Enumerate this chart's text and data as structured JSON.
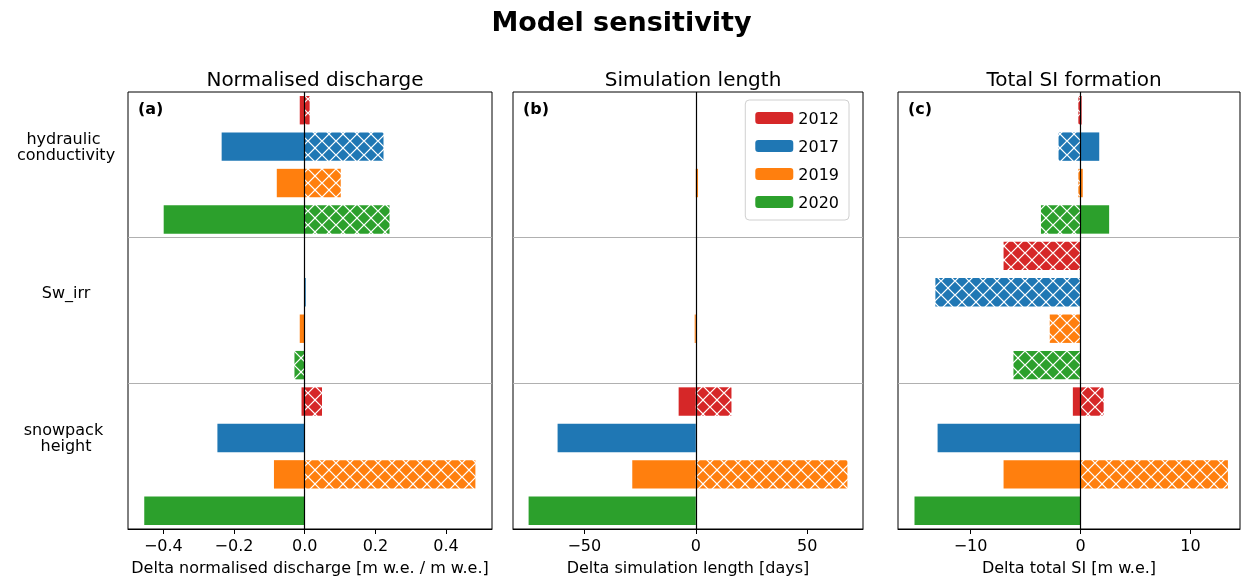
{
  "chart_data": [
    {
      "type": "bar",
      "orientation": "horizontal",
      "stacked": true,
      "title": "Normalised discharge",
      "xlabel": "Delta normalised discharge [m w.e. / m w.e.]",
      "annotations": [
        "Model sensitivity",
        "(a)"
      ],
      "categories": [
        null,
        "hydraulic conductivity",
        null,
        null,
        null,
        "Sw_irr",
        null,
        null,
        null,
        "snowpack height",
        null,
        null
      ],
      "xlim": [
        -0.5,
        0.53
      ],
      "xticks": [
        {
          "value": -0.4,
          "label": "−0.4"
        },
        {
          "value": -0.2,
          "label": "−0.2"
        },
        {
          "value": 0,
          "label": "0.0"
        },
        {
          "value": 0.2,
          "label": "0.2"
        },
        {
          "value": 0.4,
          "label": "0.4"
        }
      ],
      "grid": "y",
      "ref_lines": [
        {
          "axis": "x",
          "value": 0,
          "color": "#000000"
        }
      ],
      "series": [
        {
          "color": "#d62728",
          "values": [
            -0.014,
            null,
            null,
            null,
            null,
            null,
            null,
            null,
            -0.009,
            null,
            null,
            null
          ]
        },
        {
          "color": "#d62728",
          "values": [
            0.014,
            null,
            null,
            null,
            null,
            null,
            null,
            null,
            0.049,
            null,
            null,
            null
          ]
        },
        {
          "color": "#1f77b4",
          "values": [
            null,
            -0.235,
            null,
            null,
            null,
            0.003,
            null,
            null,
            null,
            -0.247,
            null,
            null
          ]
        },
        {
          "color": "#1f77b4",
          "values": [
            null,
            0.223,
            null,
            null,
            null,
            null,
            null,
            null,
            null,
            null,
            null,
            null
          ]
        },
        {
          "color": "#ff7f0e",
          "values": [
            null,
            null,
            -0.079,
            null,
            null,
            null,
            -0.014,
            null,
            null,
            null,
            -0.087,
            null
          ]
        },
        {
          "color": "#ff7f0e",
          "values": [
            null,
            null,
            0.102,
            null,
            null,
            null,
            null,
            null,
            null,
            null,
            0.483,
            null
          ]
        },
        {
          "color": "#2ca02c",
          "values": [
            null,
            null,
            null,
            -0.399,
            null,
            null,
            null,
            null,
            null,
            null,
            null,
            -0.454
          ]
        },
        {
          "color": "#2ca02c",
          "values": [
            null,
            null,
            null,
            0.24,
            null,
            null,
            null,
            -0.029,
            null,
            null,
            null,
            null
          ]
        }
      ]
    },
    {
      "type": "bar",
      "orientation": "horizontal",
      "stacked": true,
      "title": "Simulation length",
      "xlabel": "Delta simulation length [days]",
      "annotations": [
        "(b)"
      ],
      "categories": [
        null,
        "hydraulic conductivity",
        null,
        null,
        null,
        "Sw_irr",
        null,
        null,
        null,
        "snowpack height",
        null,
        null
      ],
      "tick_labels": "x",
      "xlim": [
        -82,
        75
      ],
      "xticks": [
        {
          "value": -50,
          "label": "−50"
        },
        0,
        50
      ],
      "grid": "y",
      "legend": "top right",
      "ref_lines": [
        {
          "axis": "x",
          "value": 0,
          "color": "#000000"
        }
      ],
      "series": [
        {
          "name": "2012",
          "color": "#d62728",
          "values": [
            null,
            null,
            null,
            null,
            null,
            null,
            null,
            null,
            -7.7,
            null,
            null,
            null
          ]
        },
        {
          "color": "#d62728",
          "values": [
            null,
            null,
            null,
            null,
            null,
            null,
            null,
            null,
            16,
            null,
            null,
            null
          ]
        },
        {
          "name": "2017",
          "color": "#1f77b4",
          "values": [
            null,
            null,
            null,
            null,
            null,
            null,
            null,
            null,
            null,
            -62,
            null,
            null
          ]
        },
        {
          "color": "#1f77b4",
          "values": [
            null,
            null,
            null,
            null,
            null,
            null,
            null,
            null,
            null,
            null,
            null,
            null
          ]
        },
        {
          "name": "2019",
          "color": "#ff7f0e",
          "values": [
            null,
            null,
            1,
            null,
            null,
            null,
            -0.5,
            null,
            null,
            null,
            -28.5,
            null
          ]
        },
        {
          "color": "#ff7f0e",
          "values": [
            null,
            null,
            null,
            null,
            null,
            null,
            null,
            null,
            null,
            null,
            68,
            null
          ]
        },
        {
          "name": "2020",
          "color": "#2ca02c",
          "values": [
            null,
            null,
            null,
            null,
            null,
            null,
            null,
            null,
            null,
            null,
            null,
            -75
          ]
        },
        {
          "color": "#2ca02c",
          "values": [
            null,
            null,
            null,
            null,
            null,
            null,
            null,
            null,
            null,
            null,
            null,
            null
          ]
        }
      ]
    },
    {
      "type": "bar",
      "orientation": "horizontal",
      "stacked": true,
      "title": "Total SI formation",
      "xlabel": "Delta total SI [m w.e.]",
      "annotations": [
        "(c)"
      ],
      "categories": [
        null,
        "hydraulic conductivity",
        null,
        null,
        null,
        "Sw_irr",
        null,
        null,
        null,
        "snowpack height",
        null,
        null
      ],
      "tick_labels": "x",
      "xlim": [
        -16.6,
        14.5
      ],
      "xticks": [
        {
          "value": -10,
          "label": "−10"
        },
        0,
        10
      ],
      "grid": "y",
      "ref_lines": [
        {
          "axis": "x",
          "value": 0,
          "color": "#000000"
        }
      ],
      "series": [
        {
          "color": "#d62728",
          "values": [
            0.1,
            null,
            null,
            null,
            null,
            null,
            null,
            null,
            -0.7,
            null,
            null,
            null
          ]
        },
        {
          "color": "#d62728",
          "values": [
            -0.2,
            null,
            null,
            null,
            -7.0,
            null,
            null,
            null,
            2.1,
            null,
            null,
            null
          ]
        },
        {
          "color": "#1f77b4",
          "values": [
            null,
            1.7,
            null,
            null,
            null,
            null,
            null,
            null,
            null,
            -13.0,
            null,
            null
          ]
        },
        {
          "color": "#1f77b4",
          "values": [
            null,
            -2.0,
            null,
            null,
            null,
            -13.2,
            null,
            null,
            null,
            null,
            null,
            null
          ]
        },
        {
          "color": "#ff7f0e",
          "values": [
            null,
            null,
            0.2,
            null,
            null,
            null,
            null,
            null,
            null,
            null,
            -7.0,
            null
          ]
        },
        {
          "color": "#ff7f0e",
          "values": [
            null,
            null,
            -0.2,
            null,
            null,
            null,
            -2.8,
            null,
            null,
            null,
            13.4,
            null
          ]
        },
        {
          "color": "#2ca02c",
          "values": [
            null,
            null,
            null,
            2.6,
            null,
            null,
            null,
            null,
            null,
            null,
            null,
            -15.1
          ]
        },
        {
          "color": "#2ca02c",
          "values": [
            null,
            null,
            null,
            -3.6,
            null,
            null,
            null,
            -6.1,
            null,
            null,
            null,
            null
          ]
        }
      ]
    }
  ]
}
